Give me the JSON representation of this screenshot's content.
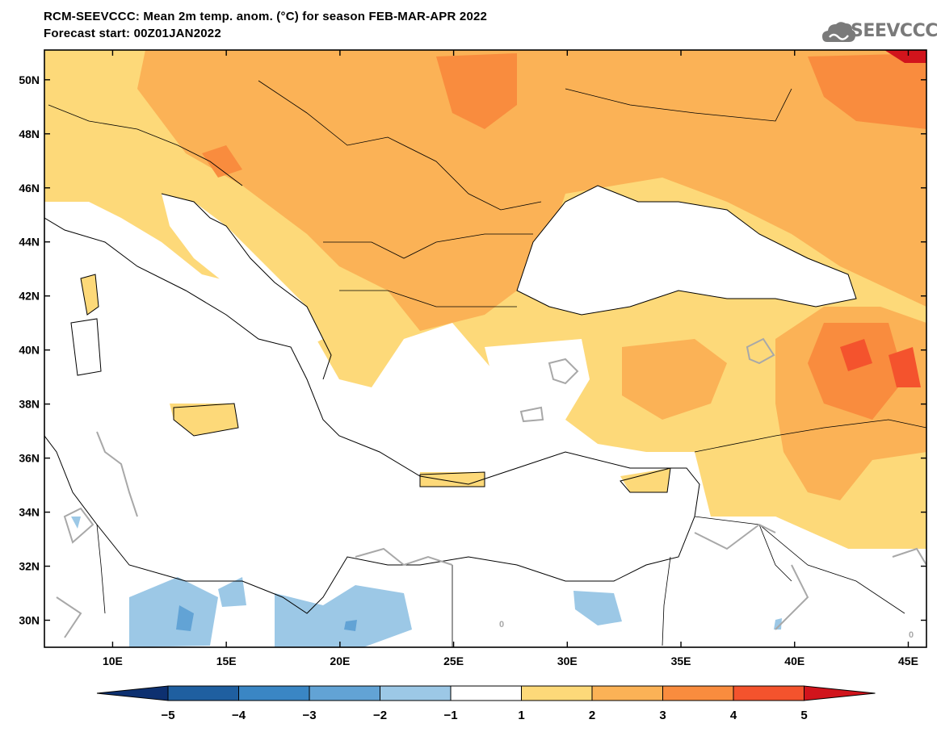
{
  "header": {
    "title_line1": "RCM-SEEVCCC: Mean 2m temp. anom. (°C) for season FEB-MAR-APR 2022",
    "title_line2": "Forecast start: 00Z01JAN2022",
    "logo_text": "SEEVCCC"
  },
  "map": {
    "lon_range": [
      7,
      45.8
    ],
    "lat_range": [
      29,
      51.1
    ],
    "lat_ticks": [
      "30N",
      "32N",
      "34N",
      "36N",
      "38N",
      "40N",
      "42N",
      "44N",
      "46N",
      "48N",
      "50N"
    ],
    "lat_values": [
      30,
      32,
      34,
      36,
      38,
      40,
      42,
      44,
      46,
      48,
      50
    ],
    "lon_ticks": [
      "10E",
      "15E",
      "20E",
      "25E",
      "30E",
      "35E",
      "40E",
      "45E"
    ],
    "lon_values": [
      10,
      15,
      20,
      25,
      30,
      35,
      40,
      45
    ],
    "contour_label": "0"
  },
  "colorbar": {
    "levels": [
      "-5",
      "-4",
      "-3",
      "-2",
      "-1",
      "1",
      "2",
      "3",
      "4",
      "5"
    ],
    "colors": [
      "#1f5fa0",
      "#3a86c4",
      "#62a3d5",
      "#9cc8e6",
      "#ffffff",
      "#fdd979",
      "#fbb256",
      "#f98c3e",
      "#f4532d",
      "#d1141c"
    ],
    "low_color": "#0d3070",
    "high_color": "#a5070e"
  }
}
